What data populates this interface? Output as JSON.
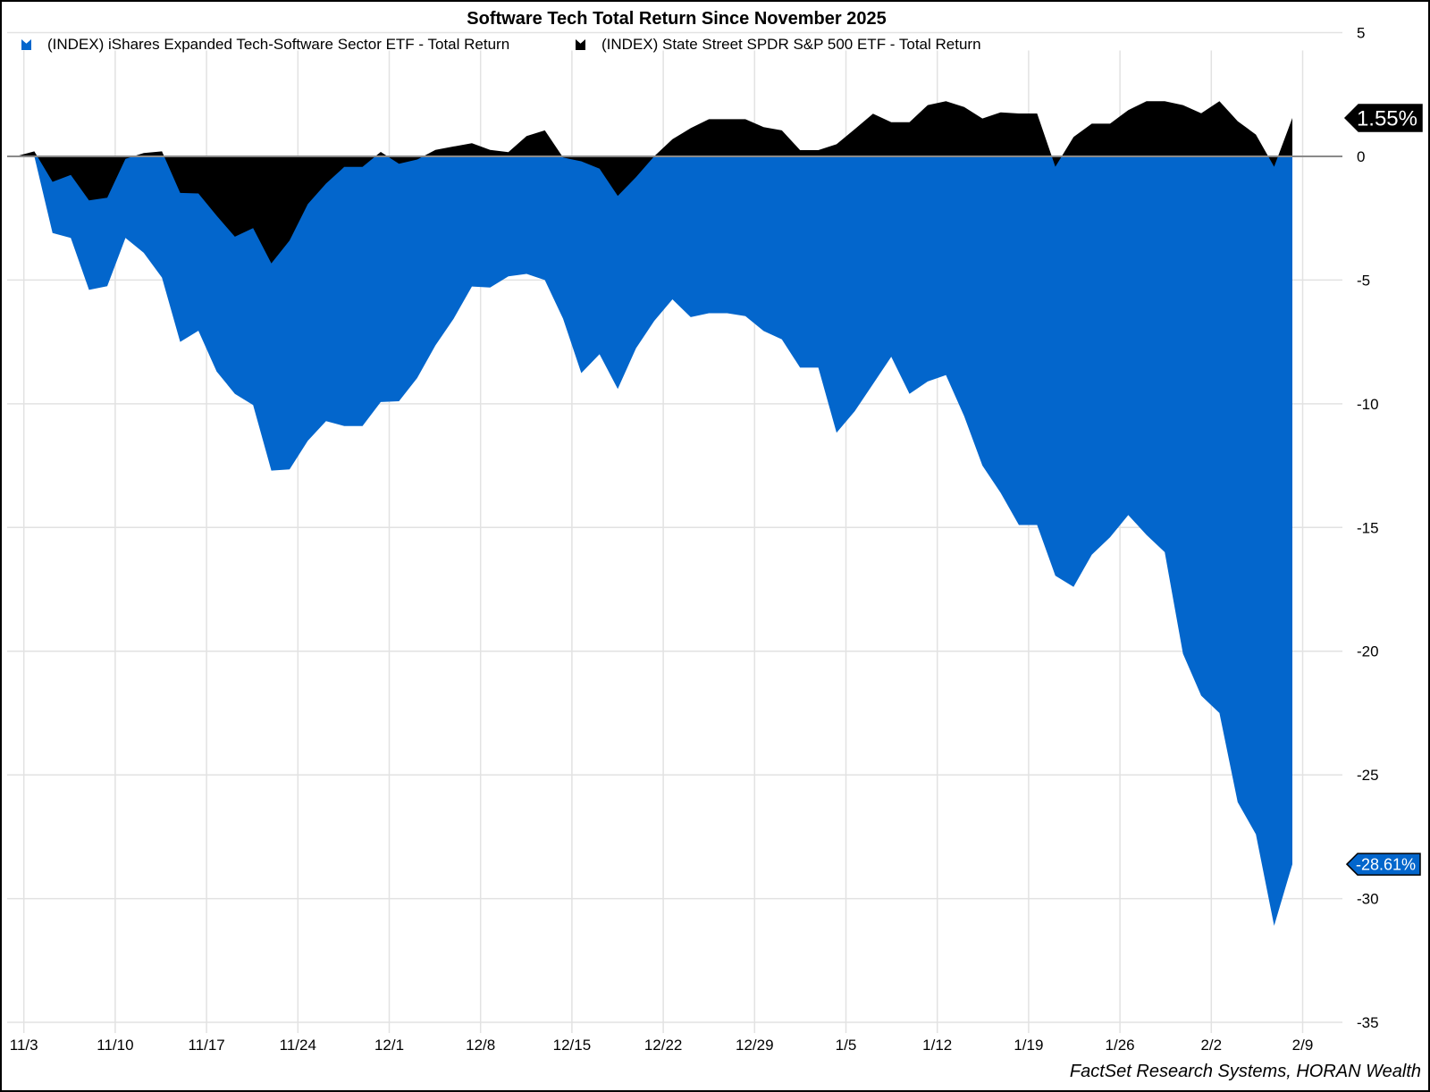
{
  "chart_data": {
    "type": "area",
    "title": "Software Tech Total Return Since November 2025",
    "xlabel": "",
    "ylabel": "",
    "ylim": [
      -35,
      5
    ],
    "yticks": [
      5,
      0,
      -5,
      -10,
      -15,
      -20,
      -25,
      -30,
      -35
    ],
    "xtick_labels": [
      "11/3",
      "11/10",
      "11/17",
      "11/24",
      "12/1",
      "12/8",
      "12/15",
      "12/22",
      "12/29",
      "1/5",
      "1/12",
      "1/19",
      "1/26",
      "2/2",
      "2/9"
    ],
    "grid": true,
    "legend_position": "top-left",
    "series": [
      {
        "name": "(INDEX) iShares Expanded Tech-Software Sector ETF - Total Return",
        "color": "#0366CC",
        "end_label": "-28.61%",
        "values": [
          0,
          0,
          -3.1,
          -3.3,
          -5.4,
          -5.25,
          -3.3,
          -3.9,
          -4.9,
          -7.5,
          -7.05,
          -8.7,
          -9.6,
          -10.05,
          -12.7,
          -12.65,
          -11.5,
          -10.7,
          -10.9,
          -10.9,
          -9.93,
          -9.9,
          -8.96,
          -7.64,
          -6.56,
          -5.26,
          -5.3,
          -4.85,
          -4.75,
          -5.0,
          -6.56,
          -8.76,
          -8.0,
          -9.4,
          -7.76,
          -6.65,
          -5.78,
          -6.5,
          -6.34,
          -6.34,
          -6.46,
          -7.06,
          -7.4,
          -8.54,
          -8.54,
          -11.17,
          -10.3,
          -9.2,
          -8.1,
          -9.6,
          -9.1,
          -8.84,
          -10.5,
          -12.5,
          -13.6,
          -14.9,
          -14.9,
          -16.95,
          -17.4,
          -16.1,
          -15.4,
          -14.5,
          -15.3,
          -16.0,
          -20.1,
          -21.8,
          -22.5,
          -26.1,
          -27.4,
          -31.1,
          -28.61
        ]
      },
      {
        "name": "(INDEX) State Street SPDR S&P 500 ETF - Total Return",
        "color": "#000000",
        "end_label": "1.55%",
        "values": [
          0,
          0.2,
          -1.03,
          -0.75,
          -1.78,
          -1.67,
          -0.1,
          0.13,
          0.2,
          -1.48,
          -1.5,
          -2.4,
          -3.25,
          -2.9,
          -4.33,
          -3.4,
          -1.93,
          -1.1,
          -0.43,
          -0.43,
          0.18,
          -0.3,
          -0.13,
          0.26,
          0.4,
          0.53,
          0.26,
          0.17,
          0.82,
          1.05,
          -0.05,
          -0.2,
          -0.5,
          -1.6,
          -0.84,
          0,
          0.69,
          1.14,
          1.5,
          1.5,
          1.5,
          1.18,
          1.05,
          0.25,
          0.25,
          0.49,
          1.1,
          1.72,
          1.38,
          1.38,
          2.07,
          2.23,
          1.99,
          1.53,
          1.78,
          1.73,
          1.73,
          -0.42,
          0.78,
          1.32,
          1.32,
          1.87,
          2.23,
          2.23,
          2.07,
          1.74,
          2.23,
          1.42,
          0.88,
          -0.42,
          1.55
        ]
      }
    ]
  },
  "source": "FactSet Research Systems, HORAN Wealth"
}
